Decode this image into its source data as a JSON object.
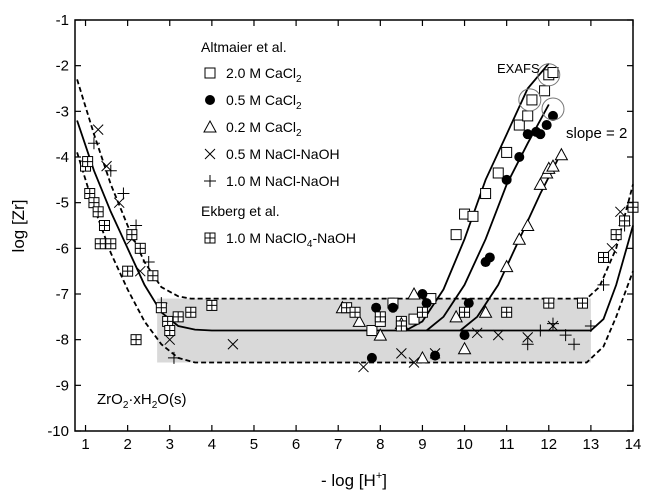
{
  "chart_data": {
    "type": "scatter",
    "xlabel_main": "- log [H",
    "xlabel_sup": "+",
    "xlabel_end": "]",
    "ylabel": "log [Zr]",
    "xlim": [
      0.75,
      14
    ],
    "ylim": [
      -10,
      -1
    ],
    "xticks": [
      1,
      2,
      3,
      4,
      5,
      6,
      7,
      8,
      9,
      10,
      11,
      12,
      13,
      14
    ],
    "yticks": [
      -10,
      -9,
      -8,
      -7,
      -6,
      -5,
      -4,
      -3,
      -2,
      -1
    ],
    "grid": false,
    "shaded_band": {
      "x": [
        2.7,
        13.0
      ],
      "y": [
        -8.5,
        -7.1
      ],
      "color": "#d9d9d9"
    },
    "legend": {
      "group1_title": "Altmaier et al.",
      "group2_title": "Ekberg et al.",
      "items": [
        {
          "marker": "open-square",
          "label": "2.0 M CaCl",
          "sub": "2"
        },
        {
          "marker": "filled-circle",
          "label": "0.5 M CaCl",
          "sub": "2"
        },
        {
          "marker": "open-triangle",
          "label": "0.2 M CaCl",
          "sub": "2"
        },
        {
          "marker": "cross",
          "label": "0.5 M NaCl-NaOH",
          "sub": ""
        },
        {
          "marker": "plus",
          "label": "1.0 M NaCl-NaOH",
          "sub": ""
        },
        {
          "marker": "boxed-plus",
          "label": "1.0 M NaClO",
          "sub": "4",
          "label_end": "-NaOH"
        }
      ]
    },
    "annotations": {
      "exafs": "EXAFS",
      "slope": "slope = 2",
      "solid_phase": {
        "a": "ZrO",
        "sub1": "2",
        "b": "·xH",
        "sub2": "2",
        "c": "O(s)"
      }
    },
    "exafs_circles": [
      [
        11.55,
        -2.75
      ],
      [
        12.0,
        -2.2
      ],
      [
        12.1,
        -2.95
      ]
    ],
    "curves": [
      {
        "style": "solid",
        "points": [
          [
            0.8,
            -3.2
          ],
          [
            1.2,
            -4.3
          ],
          [
            1.6,
            -5.2
          ],
          [
            2.0,
            -6.0
          ],
          [
            2.4,
            -6.8
          ],
          [
            2.8,
            -7.4
          ],
          [
            3.2,
            -7.7
          ],
          [
            3.6,
            -7.78
          ],
          [
            4,
            -7.8
          ],
          [
            8.5,
            -7.8
          ],
          [
            13.0,
            -7.8
          ],
          [
            13.3,
            -7.55
          ],
          [
            13.6,
            -6.8
          ],
          [
            14.0,
            -5.5
          ]
        ]
      },
      {
        "style": "dashed",
        "points": [
          [
            0.8,
            -2.3
          ],
          [
            1.2,
            -3.5
          ],
          [
            1.6,
            -4.6
          ],
          [
            2.0,
            -5.5
          ],
          [
            2.4,
            -6.3
          ],
          [
            2.8,
            -6.85
          ],
          [
            3.2,
            -7.05
          ],
          [
            3.5,
            -7.1
          ],
          [
            12.9,
            -7.1
          ],
          [
            13.2,
            -6.85
          ],
          [
            13.6,
            -6.0
          ],
          [
            14.0,
            -4.6
          ]
        ]
      },
      {
        "style": "dashed",
        "points": [
          [
            0.8,
            -3.9
          ],
          [
            1.2,
            -5.1
          ],
          [
            1.6,
            -6.1
          ],
          [
            2.0,
            -6.9
          ],
          [
            2.4,
            -7.6
          ],
          [
            2.8,
            -8.1
          ],
          [
            3.2,
            -8.4
          ],
          [
            3.6,
            -8.5
          ],
          [
            12.9,
            -8.5
          ],
          [
            13.3,
            -8.15
          ],
          [
            13.6,
            -7.5
          ],
          [
            14.0,
            -6.5
          ]
        ]
      },
      {
        "style": "solid",
        "points": [
          [
            8.6,
            -7.8
          ],
          [
            9.0,
            -7.6
          ],
          [
            9.5,
            -6.9
          ],
          [
            10.0,
            -5.8
          ],
          [
            10.5,
            -4.5
          ],
          [
            11.0,
            -3.5
          ],
          [
            11.5,
            -2.5
          ],
          [
            12.0,
            -1.95
          ]
        ]
      },
      {
        "style": "solid",
        "points": [
          [
            9.1,
            -7.8
          ],
          [
            9.5,
            -7.5
          ],
          [
            10.0,
            -6.8
          ],
          [
            10.5,
            -5.8
          ],
          [
            11.0,
            -4.6
          ],
          [
            11.5,
            -3.7
          ],
          [
            12.0,
            -2.85
          ]
        ]
      },
      {
        "style": "solid",
        "points": [
          [
            9.9,
            -7.8
          ],
          [
            10.3,
            -7.5
          ],
          [
            10.8,
            -6.8
          ],
          [
            11.3,
            -5.8
          ],
          [
            11.8,
            -4.8
          ],
          [
            12.3,
            -3.9
          ]
        ]
      }
    ],
    "series": [
      {
        "name": "2.0 M CaCl2",
        "marker": "open-square",
        "points": [
          [
            7.8,
            -7.8
          ],
          [
            8.0,
            -7.6
          ],
          [
            8.3,
            -7.2
          ],
          [
            8.5,
            -7.6
          ],
          [
            8.8,
            -7.55
          ],
          [
            9.2,
            -7.1
          ],
          [
            9.8,
            -5.7
          ],
          [
            10.0,
            -5.25
          ],
          [
            10.2,
            -5.3
          ],
          [
            10.5,
            -4.8
          ],
          [
            10.8,
            -4.35
          ],
          [
            11.0,
            -3.9
          ],
          [
            11.3,
            -3.3
          ],
          [
            11.5,
            -3.1
          ],
          [
            11.6,
            -2.75
          ],
          [
            11.9,
            -2.55
          ],
          [
            12.0,
            -2.2
          ],
          [
            12.1,
            -2.15
          ]
        ]
      },
      {
        "name": "0.5 M CaCl2",
        "marker": "filled-circle",
        "points": [
          [
            7.8,
            -8.4
          ],
          [
            7.9,
            -7.3
          ],
          [
            8.3,
            -7.3
          ],
          [
            9.0,
            -7.0
          ],
          [
            9.1,
            -7.2
          ],
          [
            9.3,
            -8.35
          ],
          [
            10.0,
            -7.9
          ],
          [
            10.1,
            -7.2
          ],
          [
            10.5,
            -6.3
          ],
          [
            10.6,
            -6.2
          ],
          [
            11.0,
            -4.5
          ],
          [
            11.3,
            -4.0
          ],
          [
            11.5,
            -3.5
          ],
          [
            11.7,
            -3.45
          ],
          [
            11.8,
            -3.5
          ],
          [
            11.95,
            -3.3
          ],
          [
            12.1,
            -3.1
          ]
        ]
      },
      {
        "name": "0.2 M CaCl2",
        "marker": "open-triangle",
        "points": [
          [
            7.1,
            -7.3
          ],
          [
            7.5,
            -7.6
          ],
          [
            8.0,
            -7.9
          ],
          [
            8.5,
            -7.65
          ],
          [
            8.8,
            -7.0
          ],
          [
            9.0,
            -8.4
          ],
          [
            9.8,
            -7.5
          ],
          [
            10.0,
            -8.2
          ],
          [
            10.5,
            -7.4
          ],
          [
            11.0,
            -6.4
          ],
          [
            11.3,
            -5.8
          ],
          [
            11.5,
            -5.5
          ],
          [
            11.8,
            -4.6
          ],
          [
            11.95,
            -4.35
          ],
          [
            12.0,
            -4.25
          ],
          [
            12.1,
            -4.2
          ],
          [
            12.3,
            -3.95
          ]
        ]
      },
      {
        "name": "0.5 M NaCl-NaOH",
        "marker": "cross",
        "points": [
          [
            1.3,
            -3.4
          ],
          [
            1.5,
            -4.2
          ],
          [
            1.8,
            -5.0
          ],
          [
            2.1,
            -5.8
          ],
          [
            2.3,
            -6.5
          ],
          [
            2.8,
            -7.3
          ],
          [
            3.0,
            -8.0
          ],
          [
            4.5,
            -8.1
          ],
          [
            7.6,
            -8.6
          ],
          [
            8.5,
            -8.3
          ],
          [
            8.8,
            -8.5
          ],
          [
            9.3,
            -8.3
          ],
          [
            10.3,
            -7.85
          ],
          [
            10.8,
            -7.9
          ],
          [
            11.5,
            -7.95
          ],
          [
            12.1,
            -7.7
          ],
          [
            13.5,
            -6.0
          ],
          [
            13.7,
            -5.2
          ]
        ]
      },
      {
        "name": "1.0 M NaCl-NaOH",
        "marker": "plus",
        "points": [
          [
            1.2,
            -3.7
          ],
          [
            1.6,
            -4.3
          ],
          [
            1.9,
            -4.8
          ],
          [
            2.2,
            -5.5
          ],
          [
            2.5,
            -6.3
          ],
          [
            2.8,
            -7.2
          ],
          [
            3.1,
            -8.4
          ],
          [
            11.5,
            -8.1
          ],
          [
            11.8,
            -7.8
          ],
          [
            12.1,
            -7.65
          ],
          [
            12.4,
            -7.9
          ],
          [
            12.6,
            -8.1
          ],
          [
            13.0,
            -7.7
          ],
          [
            13.3,
            -6.8
          ],
          [
            13.8,
            -5.5
          ]
        ]
      },
      {
        "name": "1.0 M NaClO4-NaOH",
        "marker": "boxed-plus",
        "points": [
          [
            1.0,
            -4.2
          ],
          [
            1.05,
            -4.1
          ],
          [
            1.1,
            -4.8
          ],
          [
            1.2,
            -5.0
          ],
          [
            1.3,
            -5.2
          ],
          [
            1.35,
            -5.9
          ],
          [
            1.45,
            -5.5
          ],
          [
            1.6,
            -5.9
          ],
          [
            2.0,
            -6.5
          ],
          [
            2.1,
            -5.7
          ],
          [
            2.2,
            -8.0
          ],
          [
            2.3,
            -6.0
          ],
          [
            2.6,
            -6.6
          ],
          [
            2.8,
            -7.3
          ],
          [
            2.95,
            -7.6
          ],
          [
            3.0,
            -7.8
          ],
          [
            3.2,
            -7.5
          ],
          [
            3.5,
            -7.4
          ],
          [
            4.0,
            -7.25
          ],
          [
            7.2,
            -7.3
          ],
          [
            7.4,
            -7.4
          ],
          [
            8.0,
            -7.5
          ],
          [
            8.5,
            -7.7
          ],
          [
            9.0,
            -7.4
          ],
          [
            10.0,
            -7.4
          ],
          [
            11.0,
            -7.4
          ],
          [
            12.0,
            -7.2
          ],
          [
            12.8,
            -7.2
          ],
          [
            13.3,
            -6.2
          ],
          [
            13.6,
            -5.7
          ],
          [
            13.8,
            -5.4
          ],
          [
            14.0,
            -5.1
          ]
        ]
      }
    ]
  }
}
